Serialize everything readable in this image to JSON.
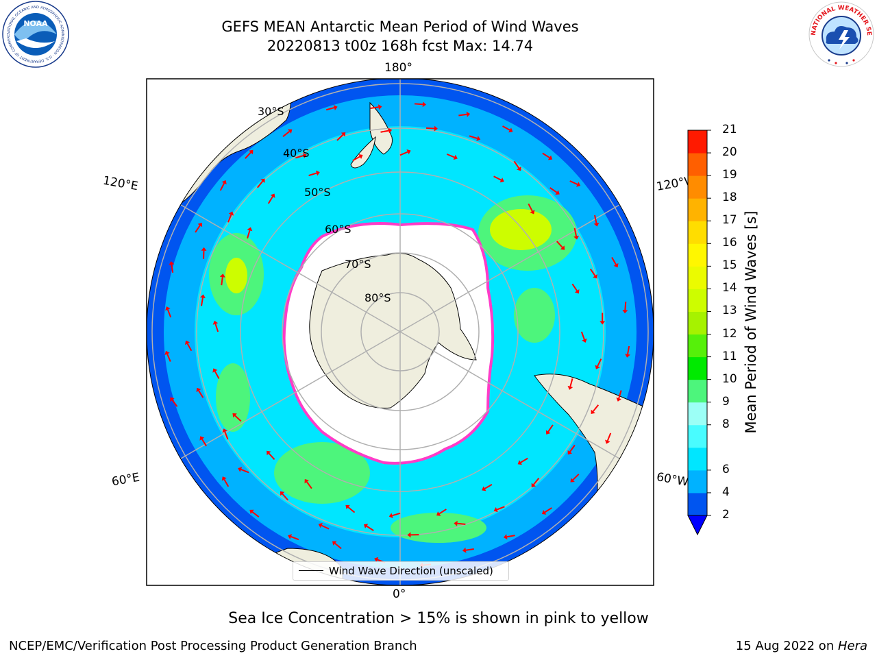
{
  "header": {
    "title_line1": "GEFS MEAN Antarctic Mean Period of Wind Waves",
    "title_line2": "20220813 t00z 168h fcst   Max: 14.74"
  },
  "logos": {
    "noaa": {
      "text": "NOAA",
      "ring_text": "NATIONAL OCEANIC AND ATMOSPHERIC ADMINISTRATION · U.S. DEPARTMENT OF COMMERCE"
    },
    "nws": {
      "ring_text": "NATIONAL WEATHER SERVICE"
    }
  },
  "map": {
    "projection": "south-polar-stereographic",
    "longitude_labels": {
      "top": "180°",
      "bottom": "0°",
      "upper_left": "120°E",
      "lower_left": "60°E",
      "upper_right": "120°W",
      "lower_right": "60°W"
    },
    "latitude_labels": [
      "30°S",
      "40°S",
      "50°S",
      "60°S",
      "70°S",
      "80°S"
    ],
    "legend": "Wind Wave Direction (unscaled)",
    "colors": {
      "land": "#efeede",
      "ice_free_fill": "#ffffff",
      "ice_edge": [
        "#ff3cc8",
        "#ffd24a"
      ],
      "vector": "#ff0000",
      "grid": "#b0b0b0"
    }
  },
  "colorbar": {
    "label": "Mean Period of Wind Waves [s]",
    "ticks": [
      "21",
      "20",
      "19",
      "18",
      "17",
      "16",
      "15",
      "14",
      "13",
      "12",
      "11",
      "10",
      "9",
      "8",
      "6",
      "4",
      "2"
    ],
    "levels": [
      2,
      4,
      6,
      7,
      8,
      9,
      10,
      11,
      12,
      13,
      14,
      15,
      16,
      17,
      18,
      19,
      20,
      21
    ],
    "colors": [
      "#0055f0",
      "#00b2ff",
      "#00e6ff",
      "#49fcff",
      "#9cfff6",
      "#4df57c",
      "#00ea00",
      "#56f00a",
      "#a6f200",
      "#cdfd00",
      "#ebfb00",
      "#fff700",
      "#ffdd00",
      "#ffb300",
      "#ff8c00",
      "#ff5f00",
      "#ff1a00",
      "#ff0000"
    ],
    "under_color": "#0000ff"
  },
  "caption": "Sea Ice Concentration > 15% is shown in pink to yellow",
  "footer": {
    "left": "NCEP/EMC/Verification Post Processing Product Generation Branch",
    "right_date": "15 Aug 2022 on ",
    "right_machine": "Hera"
  }
}
